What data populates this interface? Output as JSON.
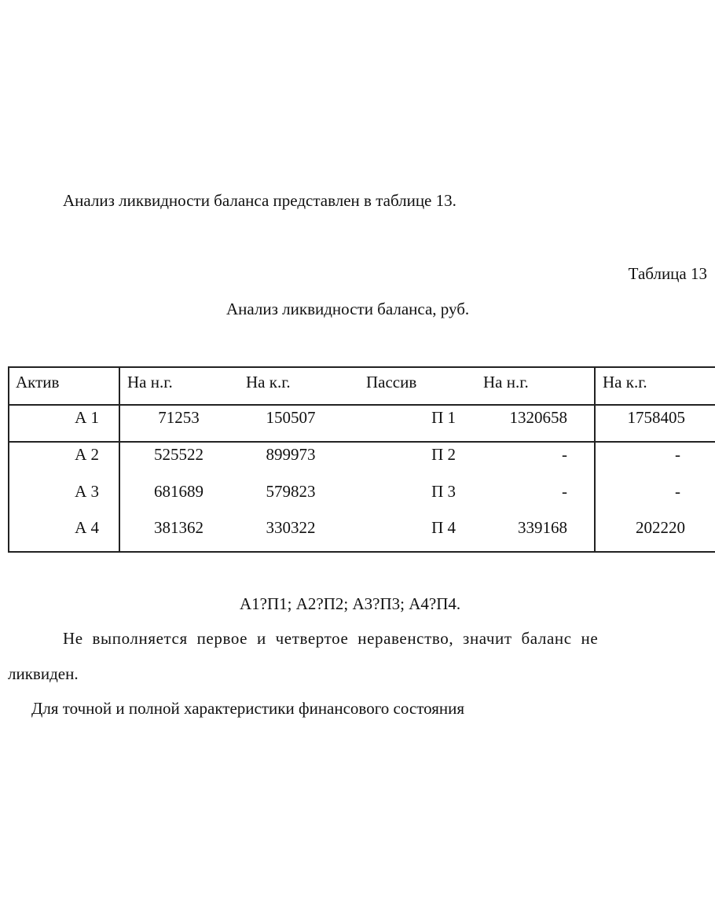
{
  "intro": "Анализ  ликвидности  баланса представлен в таблице 13.",
  "table_label": "Таблица 13",
  "table_title": "Анализ  ликвидности  баланса, руб.",
  "table": {
    "headers": [
      "Актив",
      "На н.г.",
      "На к.г.",
      "Пассив",
      "На н.г.",
      "На к.г."
    ],
    "rows": [
      [
        "А 1",
        "71253",
        "150507",
        "П 1",
        "1320658",
        "1758405"
      ],
      [
        "А 2",
        "525522",
        "899973",
        "П 2",
        "-",
        "-"
      ],
      [
        "А 3",
        "681689",
        "579823",
        "П 3",
        "-",
        "-"
      ],
      [
        "А 4",
        "381362",
        "330322",
        "П 4",
        "339168",
        "202220"
      ]
    ]
  },
  "inequalities": "А1?П1; А2?П2; А3?П3; А4?П4.",
  "conclusion_line1": "Не выполняется первое  и четвертое неравенство, значит баланс не",
  "conclusion_line2": "ликвиден.",
  "closing": "Для точной и полной характеристики финансового состояния"
}
